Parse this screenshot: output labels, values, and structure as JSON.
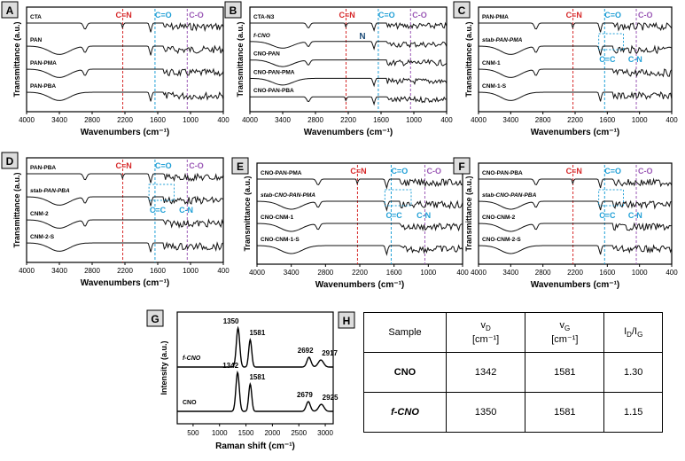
{
  "panels": [
    {
      "label": "A",
      "traces": [
        "CTA",
        "PAN",
        "PAN-PMA",
        "PAN-PBA"
      ],
      "annotations": []
    },
    {
      "label": "B",
      "traces": [
        "CTA-N3",
        "f-CNO",
        "CNO-PAN",
        "CNO-PAN-PMA",
        "CNO-PAN-PBA"
      ],
      "annotations": [
        "N3"
      ]
    },
    {
      "label": "C",
      "traces": [
        "PAN-PMA",
        "stab-PAN-PMA",
        "CNM-1",
        "CNM-1-S"
      ],
      "annotations": [
        "C=C",
        "C-N"
      ]
    },
    {
      "label": "D",
      "traces": [
        "PAN-PBA",
        "stab-PAN-PBA",
        "CNM-2",
        "CNM-2-S"
      ],
      "annotations": [
        "C=C",
        "C-N"
      ]
    },
    {
      "label": "E",
      "traces": [
        "CNO-PAN-PMA",
        "stab-CNO-PAN-PMA",
        "CNO-CNM-1",
        "CNO-CNM-1-S"
      ],
      "annotations": [
        "C=C",
        "C-N"
      ]
    },
    {
      "label": "F",
      "traces": [
        "CNO-PAN-PBA",
        "stab-CNO-PAN-PBA",
        "CNO-CNM-2",
        "CNO-CNM-2-S"
      ],
      "annotations": [
        "C=C",
        "C-N"
      ]
    }
  ],
  "common": {
    "xlabel": "Wavenumbers (cm⁻¹)",
    "ylabel": "Transmittance (a.u.)",
    "xticks": [
      "4000",
      "3400",
      "2800",
      "2200",
      "1600",
      "1000",
      "400"
    ],
    "band_cn": "C≡N",
    "band_co": "C=O",
    "band_c_o": "C-O",
    "colors": {
      "cn": "#d62728",
      "co": "#1f9fd6",
      "c_o": "#9b59b6"
    }
  },
  "chart_data": [
    {
      "type": "line",
      "panel": "A",
      "title": "",
      "xlabel": "Wavenumbers (cm-1)",
      "ylabel": "Transmittance (a.u.)",
      "xlim": [
        4000,
        400
      ],
      "series": [
        {
          "name": "CTA"
        },
        {
          "name": "PAN"
        },
        {
          "name": "PAN-PMA"
        },
        {
          "name": "PAN-PBA"
        }
      ],
      "reference_lines": [
        {
          "label": "C≡N",
          "x": 2240
        },
        {
          "label": "C=O",
          "x": 1730
        },
        {
          "label": "C-O",
          "x": 1160
        }
      ]
    },
    {
      "type": "line",
      "panel": "B",
      "xlabel": "Wavenumbers (cm-1)",
      "ylabel": "Transmittance (a.u.)",
      "xlim": [
        4000,
        400
      ],
      "series": [
        {
          "name": "CTA-N3"
        },
        {
          "name": "f-CNO"
        },
        {
          "name": "CNO-PAN"
        },
        {
          "name": "CNO-PAN-PMA"
        },
        {
          "name": "CNO-PAN-PBA"
        }
      ]
    },
    {
      "type": "line",
      "panel": "C",
      "xlim": [
        4000,
        400
      ],
      "series": [
        {
          "name": "PAN-PMA"
        },
        {
          "name": "stab-PAN-PMA"
        },
        {
          "name": "CNM-1"
        },
        {
          "name": "CNM-1-S"
        }
      ]
    },
    {
      "type": "line",
      "panel": "D",
      "xlim": [
        4000,
        400
      ],
      "series": [
        {
          "name": "PAN-PBA"
        },
        {
          "name": "stab-PAN-PBA"
        },
        {
          "name": "CNM-2"
        },
        {
          "name": "CNM-2-S"
        }
      ]
    },
    {
      "type": "line",
      "panel": "E",
      "xlim": [
        4000,
        400
      ],
      "series": [
        {
          "name": "CNO-PAN-PMA"
        },
        {
          "name": "stab-CNO-PAN-PMA"
        },
        {
          "name": "CNO-CNM-1"
        },
        {
          "name": "CNO-CNM-1-S"
        }
      ]
    },
    {
      "type": "line",
      "panel": "F",
      "xlim": [
        4000,
        400
      ],
      "series": [
        {
          "name": "CNO-PAN-PBA"
        },
        {
          "name": "stab-CNO-PAN-PBA"
        },
        {
          "name": "CNO-CNM-2"
        },
        {
          "name": "CNO-CNM-2-S"
        }
      ]
    },
    {
      "type": "line",
      "panel": "G",
      "xlabel": "Raman shift (cm⁻¹)",
      "ylabel": "Intensity (a.u.)",
      "xlim": [
        200,
        3150
      ],
      "xticks": [
        "500",
        "1000",
        "1500",
        "2000",
        "2500",
        "3000"
      ],
      "series": [
        {
          "name": "f-CNO",
          "peaks": [
            1350,
            1581,
            2692,
            2917
          ]
        },
        {
          "name": "CNO",
          "peaks": [
            1342,
            1581,
            2679,
            2925
          ]
        }
      ]
    },
    {
      "type": "table",
      "panel": "H",
      "columns": [
        "Sample",
        "vD [cm-1]",
        "vG [cm-1]",
        "ID/IG"
      ],
      "rows": [
        [
          "CNO",
          "1342",
          "1581",
          "1.30"
        ],
        [
          "f-CNO",
          "1350",
          "1581",
          "1.15"
        ]
      ]
    }
  ],
  "raman": {
    "label": "G",
    "xlabel": "Raman shift (cm⁻¹)",
    "ylabel": "Intensity (a.u.)",
    "xticks": [
      "500",
      "1000",
      "1500",
      "2000",
      "2500",
      "3000"
    ],
    "series": [
      {
        "name": "f-CNO",
        "peaks": [
          "1350",
          "1581",
          "2692",
          "2917"
        ]
      },
      {
        "name": "CNO",
        "peaks": [
          "1342",
          "1581",
          "2679",
          "2925"
        ]
      }
    ]
  },
  "table": {
    "label": "H",
    "header": {
      "sample": "Sample",
      "vd": "v",
      "vd_sub": "D",
      "vd_unit": "[cm⁻¹]",
      "vg": "v",
      "vg_sub": "G",
      "vg_unit": "[cm⁻¹]",
      "ratio_i": "I",
      "ratio_d": "D",
      "ratio_slash": "/I",
      "ratio_g": "G"
    },
    "rows": [
      {
        "sample": "CNO",
        "vd": "1342",
        "vg": "1581",
        "ratio": "1.30"
      },
      {
        "sample": "f-CNO",
        "vd": "1350",
        "vg": "1581",
        "ratio": "1.15"
      }
    ]
  }
}
